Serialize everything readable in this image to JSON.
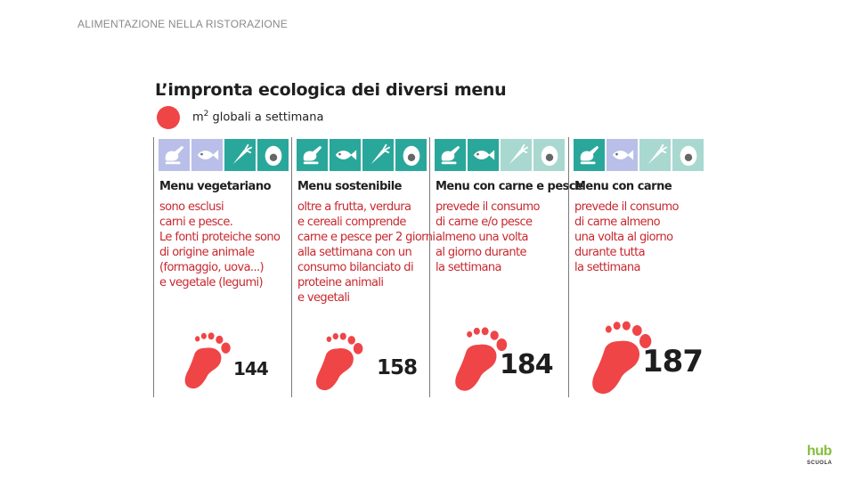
{
  "header": {
    "title": "ALIMENTAZIONE NELLA RISTORAZIONE"
  },
  "infographic": {
    "title": "L’impronta ecologica dei diversi menu",
    "legend": {
      "unit": "m",
      "exp": "2",
      "text": " globali a settimana",
      "color": "#ef4547"
    },
    "colors": {
      "active": "#2aa79b",
      "inactive_blue": "#b9bfe8",
      "inactive_green": "#a9d8d0",
      "footprint": "#ef4547",
      "description": "#c8282f"
    },
    "menus": [
      {
        "title": "Menu vegetariano",
        "icons": [
          {
            "name": "chicken-leg-icon",
            "state": "inactive_blue"
          },
          {
            "name": "fish-icon",
            "state": "inactive_blue"
          },
          {
            "name": "carrot-icon",
            "state": "active"
          },
          {
            "name": "egg-icon",
            "state": "active"
          }
        ],
        "description": [
          "sono esclusi",
          "carni e pesce.",
          "Le fonti proteiche sono",
          "di origine animale",
          "(formaggio, uova...)",
          "e vegetale (legumi)"
        ],
        "score": "144"
      },
      {
        "title": "Menu sostenibile",
        "icons": [
          {
            "name": "chicken-leg-icon",
            "state": "active"
          },
          {
            "name": "fish-icon",
            "state": "active"
          },
          {
            "name": "carrot-icon",
            "state": "active"
          },
          {
            "name": "egg-icon",
            "state": "active"
          }
        ],
        "description": [
          "oltre a frutta, verdura",
          "e cereali comprende",
          "carne e pesce per 2 giorni",
          "alla settimana con un",
          "consumo bilanciato di",
          "proteine animali",
          "e vegetali"
        ],
        "score": "158"
      },
      {
        "title": "Menu con carne e pesce",
        "icons": [
          {
            "name": "chicken-leg-icon",
            "state": "active"
          },
          {
            "name": "fish-icon",
            "state": "active"
          },
          {
            "name": "carrot-icon",
            "state": "inactive_green"
          },
          {
            "name": "egg-icon",
            "state": "inactive_green"
          }
        ],
        "description": [
          "prevede il consumo",
          "di carne e/o pesce",
          "almeno una volta",
          "al giorno durante",
          "la settimana"
        ],
        "score": "184"
      },
      {
        "title": "Menu con carne",
        "icons": [
          {
            "name": "chicken-leg-icon",
            "state": "active"
          },
          {
            "name": "fish-icon",
            "state": "inactive_blue"
          },
          {
            "name": "carrot-icon",
            "state": "inactive_green"
          },
          {
            "name": "egg-icon",
            "state": "inactive_green"
          }
        ],
        "description": [
          "prevede il consumo",
          "di carne almeno",
          "una volta al giorno",
          "durante tutta",
          "la settimana"
        ],
        "score": "187"
      }
    ]
  },
  "logo": {
    "mark": "hub",
    "sub": "SCUOLA"
  }
}
